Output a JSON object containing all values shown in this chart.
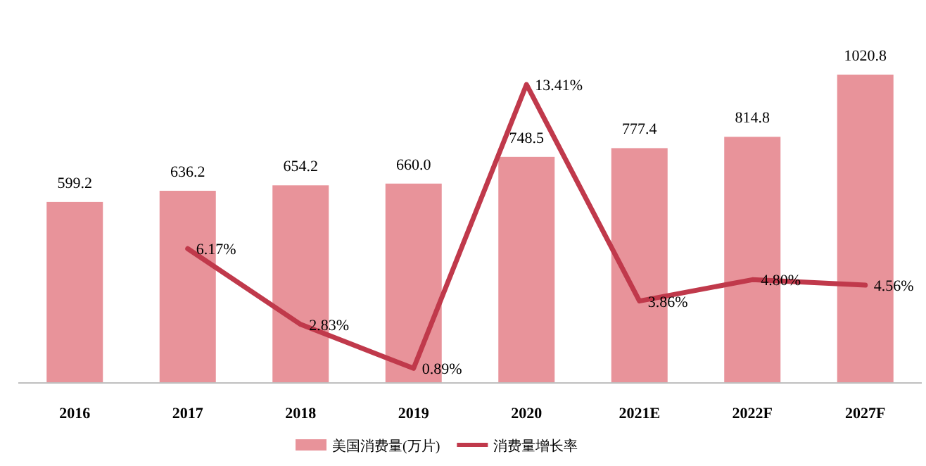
{
  "chart_data": {
    "type": "bar",
    "categories": [
      "2016",
      "2017",
      "2018",
      "2019",
      "2020",
      "2021E",
      "2022F",
      "2027F"
    ],
    "series": [
      {
        "name": "美国消费量(万片)",
        "color": "#e8939a",
        "values": [
          599.2,
          636.2,
          654.2,
          660.0,
          748.5,
          777.4,
          814.8,
          1020.8
        ],
        "value_labels": [
          "599.2",
          "636.2",
          "654.2",
          "660.0",
          "748.5",
          "777.4",
          "814.8",
          "1020.8"
        ]
      },
      {
        "name": "消费量增长率",
        "type": "line",
        "axis": "y2",
        "color": "#c0394b",
        "values": [
          null,
          6.17,
          2.83,
          0.89,
          13.41,
          3.86,
          4.8,
          4.56
        ],
        "value_labels": [
          null,
          "6.17%",
          "2.83%",
          "0.89%",
          "13.41%",
          "3.86%",
          "4.80%",
          "4.56%"
        ]
      }
    ],
    "legend": "bottom",
    "marker": "none",
    "line_style": "solid"
  }
}
